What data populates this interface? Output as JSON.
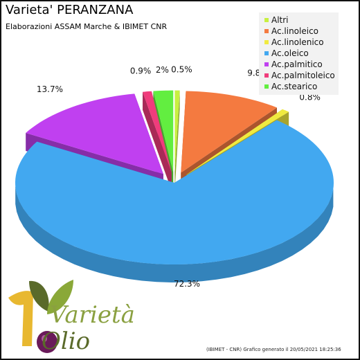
{
  "title": "Varieta' PERANZANA",
  "subtitle": "Elaborazioni ASSAM Marche & IBIMET CNR",
  "footer": "(IBIMET - CNR) Grafico generato il 20/05/2021  18:25:36",
  "logo": {
    "word1": "Varietà",
    "word2": "Olio"
  },
  "chart_data": {
    "type": "pie",
    "title": "Varieta' PERANZANA",
    "subtitle": "Elaborazioni ASSAM Marche & IBIMET CNR",
    "legend_position": "top-right",
    "slices": [
      {
        "name": "Altri",
        "value": 0.5,
        "label": "0.5%",
        "color": "#c8f040"
      },
      {
        "name": "Ac.linoleico",
        "value": 9.8,
        "label": "9.8%",
        "color": "#f47a40"
      },
      {
        "name": "Ac.linolenico",
        "value": 0.8,
        "label": "0.8%",
        "color": "#f0ea40"
      },
      {
        "name": "Ac.oleico",
        "value": 72.3,
        "label": "72.3%",
        "color": "#42a8f0"
      },
      {
        "name": "Ac.palmitico",
        "value": 13.7,
        "label": "13.7%",
        "color": "#c040f0"
      },
      {
        "name": "Ac.palmitoleico",
        "value": 0.9,
        "label": "0.9%",
        "color": "#f03c7c"
      },
      {
        "name": "Ac.stearico",
        "value": 2,
        "label": "2%",
        "color": "#62ee40"
      }
    ]
  }
}
